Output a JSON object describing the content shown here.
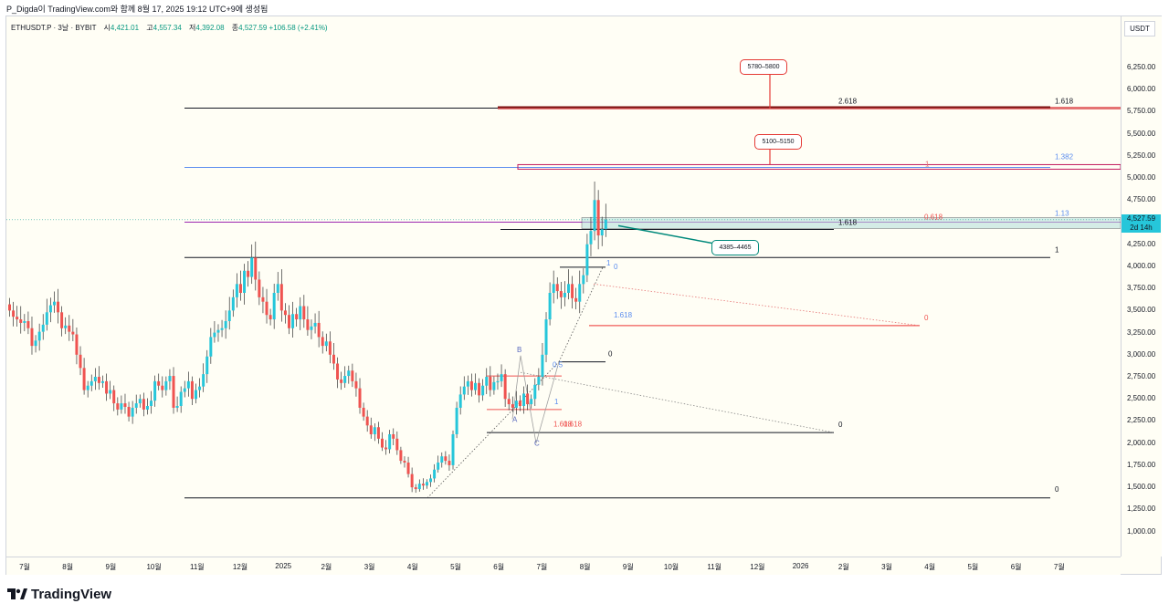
{
  "caption": "P_Digda이 TradingView.com와 함께 8월 17, 2025 19:12 UTC+9에 생성됨",
  "header": {
    "symbol": "ETHUSDT.P · 3날 · BYBIT",
    "open_label": "시",
    "open": "4,421.01",
    "high_label": "고",
    "high": "4,557.34",
    "low_label": "저",
    "low": "4,392.08",
    "close_label": "종",
    "close": "4,527.59",
    "change": "+106.58 (+2.41%)"
  },
  "axis_currency": "USDT",
  "current_price": {
    "label": "4,527.59",
    "countdown": "2d 14h"
  },
  "brand": "TradingView",
  "colors": {
    "up": "#26c6da",
    "down": "#ef5350",
    "background": "#fffef5"
  },
  "callouts": [
    {
      "text": "5780–5800"
    },
    {
      "text": "5100–5150"
    },
    {
      "text": "4385–4465"
    }
  ],
  "chart_data": {
    "type": "candlestick",
    "title": "ETHUSDT.P · 3날 · BYBIT",
    "y_ticks": [
      "6,250.00",
      "6,000.00",
      "5,750.00",
      "5,500.00",
      "5,250.00",
      "5,000.00",
      "4,750.00",
      "4,500.00",
      "4,250.00",
      "4,000.00",
      "3,750.00",
      "3,500.00",
      "3,250.00",
      "3,000.00",
      "2,750.00",
      "2,500.00",
      "2,250.00",
      "2,000.00",
      "1,750.00",
      "1,500.00",
      "1,250.00",
      "1,000.00"
    ],
    "y_tick_values": [
      6250,
      6000,
      5750,
      5500,
      5250,
      5000,
      4750,
      4500,
      4250,
      4000,
      3750,
      3500,
      3250,
      3000,
      2750,
      2500,
      2250,
      2000,
      1750,
      1500,
      1250,
      1000
    ],
    "ylim": [
      820,
      6580
    ],
    "x_ticks": [
      "7월",
      "8월",
      "9월",
      "10월",
      "11월",
      "12월",
      "2025",
      "2월",
      "3월",
      "4월",
      "5월",
      "6월",
      "7월",
      "8월",
      "9월",
      "10월",
      "11월",
      "12월",
      "2026",
      "2월",
      "3월",
      "4월",
      "5월",
      "6월",
      "7월"
    ],
    "x_tick_months": [
      0,
      1,
      2,
      3,
      4,
      5,
      6,
      7,
      8,
      9,
      10,
      11,
      12,
      13,
      14,
      15,
      16,
      17,
      18,
      19,
      20,
      21,
      22,
      23,
      24
    ],
    "closes": [
      3500,
      3430,
      3400,
      3360,
      3380,
      3300,
      3100,
      3160,
      3260,
      3340,
      3480,
      3560,
      3600,
      3480,
      3300,
      3330,
      3260,
      3230,
      3000,
      2850,
      2600,
      2650,
      2700,
      2750,
      2680,
      2700,
      2560,
      2600,
      2450,
      2380,
      2450,
      2410,
      2300,
      2400,
      2450,
      2500,
      2380,
      2420,
      2480,
      2700,
      2650,
      2600,
      2700,
      2760,
      2400,
      2420,
      2580,
      2620,
      2700,
      2500,
      2600,
      2640,
      2780,
      2980,
      3200,
      3250,
      3280,
      3300,
      3380,
      3500,
      3650,
      3800,
      3700,
      3950,
      3880,
      4100,
      3850,
      3650,
      3600,
      3450,
      3400,
      3700,
      3800,
      3500,
      3450,
      3300,
      3460,
      3400,
      3550,
      3400,
      3280,
      3320,
      3360,
      3200,
      3100,
      3150,
      3000,
      2900,
      2720,
      2680,
      2760,
      2820,
      2700,
      2620,
      2400,
      2300,
      2200,
      2100,
      2180,
      2050,
      1950,
      1930,
      2100,
      2050,
      1920,
      1800,
      1780,
      1650,
      1500,
      1480,
      1540,
      1520,
      1560,
      1600,
      1700,
      1780,
      1850,
      1800,
      1750,
      2100,
      2400,
      2550,
      2640,
      2700,
      2600,
      2680,
      2540,
      2650,
      2750,
      2600,
      2690,
      2700,
      2780,
      2500,
      2440,
      2400,
      2480,
      2420,
      2560,
      2440,
      2500,
      2660,
      2750,
      3000,
      3400,
      3700,
      3800,
      3720,
      3650,
      3700,
      3800,
      3640,
      3600,
      3800,
      3900,
      4250,
      4400,
      4750,
      4350,
      4420,
      4527.59
    ],
    "levels": [
      {
        "label": "2.618",
        "value": 5790
      },
      {
        "label": "1.618",
        "value": 5790
      },
      {
        "label": "1.382",
        "value": 5120
      },
      {
        "label": "1",
        "value": 5120
      },
      {
        "label": "1.13",
        "value": 4530
      },
      {
        "label": "0.618",
        "value": 4500
      },
      {
        "label": "1.618",
        "value": 4500
      },
      {
        "label": "1",
        "value": 4100
      },
      {
        "label": "1.618",
        "value": 3330
      },
      {
        "label": "0",
        "value": 3330
      },
      {
        "label": "0",
        "value": 1380
      },
      {
        "label": "0",
        "value": 2120
      },
      {
        "label": "0",
        "value": 2920
      },
      {
        "label": "0",
        "value": 3990
      },
      {
        "label": "1",
        "value": 4000
      },
      {
        "label": "0.5",
        "value": 2880
      },
      {
        "label": "1",
        "value": 2460
      },
      {
        "label": "1.618",
        "value": 2200
      },
      {
        "label": "0.618",
        "value": 2200
      }
    ],
    "pattern_points": [
      {
        "label": "A",
        "value": 2270
      },
      {
        "label": "B",
        "value": 2990
      },
      {
        "label": "C",
        "value": 2000
      }
    ]
  }
}
